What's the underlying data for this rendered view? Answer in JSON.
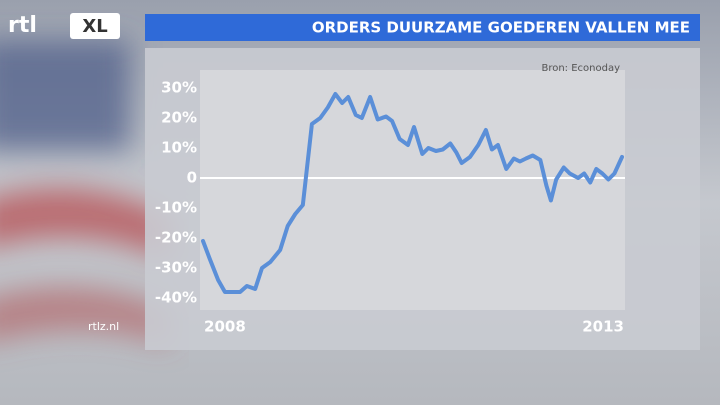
{
  "logo": {
    "text": "rtl",
    "badge": "XL"
  },
  "website": "rtlz.nl",
  "chart_data": {
    "type": "line",
    "title": "ORDERS DUURZAME GOEDEREN VALLEN MEE",
    "source": "Bron: Econoday",
    "x": [
      2007.71,
      2007.8,
      2007.91,
      2008.0,
      2008.09,
      2008.2,
      2008.29,
      2008.4,
      2008.49,
      2008.6,
      2008.73,
      2008.83,
      2008.93,
      2009.03,
      2009.15,
      2009.26,
      2009.36,
      2009.46,
      2009.55,
      2009.63,
      2009.73,
      2009.81,
      2009.92,
      2010.02,
      2010.13,
      2010.21,
      2010.31,
      2010.42,
      2010.5,
      2010.61,
      2010.69,
      2010.79,
      2010.88,
      2010.98,
      2011.06,
      2011.13,
      2011.24,
      2011.35,
      2011.45,
      2011.53,
      2011.61,
      2011.72,
      2011.82,
      2011.9,
      2011.98,
      2012.07,
      2012.17,
      2012.25,
      2012.31,
      2012.38,
      2012.48,
      2012.56,
      2012.67,
      2012.75,
      2012.83,
      2012.91,
      2012.99,
      2013.07,
      2013.15,
      2013.25
    ],
    "series": [
      {
        "color": "#5b8fd8",
        "values": [
          -21,
          -27,
          -34,
          -38,
          -38,
          -38,
          -36,
          -37,
          -30,
          -28,
          -24,
          -16,
          -12,
          -9,
          18,
          20,
          23.5,
          28,
          25,
          27,
          21,
          20,
          27,
          19.5,
          20.5,
          19,
          13,
          11,
          17,
          8,
          10,
          9,
          9.5,
          11.5,
          8.5,
          5,
          7,
          11,
          16,
          9.5,
          11,
          3,
          6.5,
          5.5,
          6.5,
          7.5,
          6,
          -2.5,
          -7.5,
          -0.5,
          3.5,
          1.5,
          0,
          1.5,
          -1.5,
          3,
          1.5,
          -0.5,
          1.5,
          7
        ]
      }
    ],
    "xlim": [
      2007.71,
      2013.25
    ],
    "xticks": [
      {
        "value": 2008,
        "label": "2008"
      },
      {
        "value": 2013,
        "label": "2013"
      }
    ],
    "ylim": [
      -44,
      36
    ],
    "yticks": [
      {
        "value": 30,
        "label": "30%"
      },
      {
        "value": 20,
        "label": "20%"
      },
      {
        "value": 10,
        "label": "10%"
      },
      0,
      {
        "value": -10,
        "label": "-10%"
      },
      {
        "value": -20,
        "label": "-20%"
      },
      {
        "value": -30,
        "label": "-30%"
      },
      {
        "value": -40,
        "label": "-40%"
      }
    ],
    "zero_line": true
  }
}
